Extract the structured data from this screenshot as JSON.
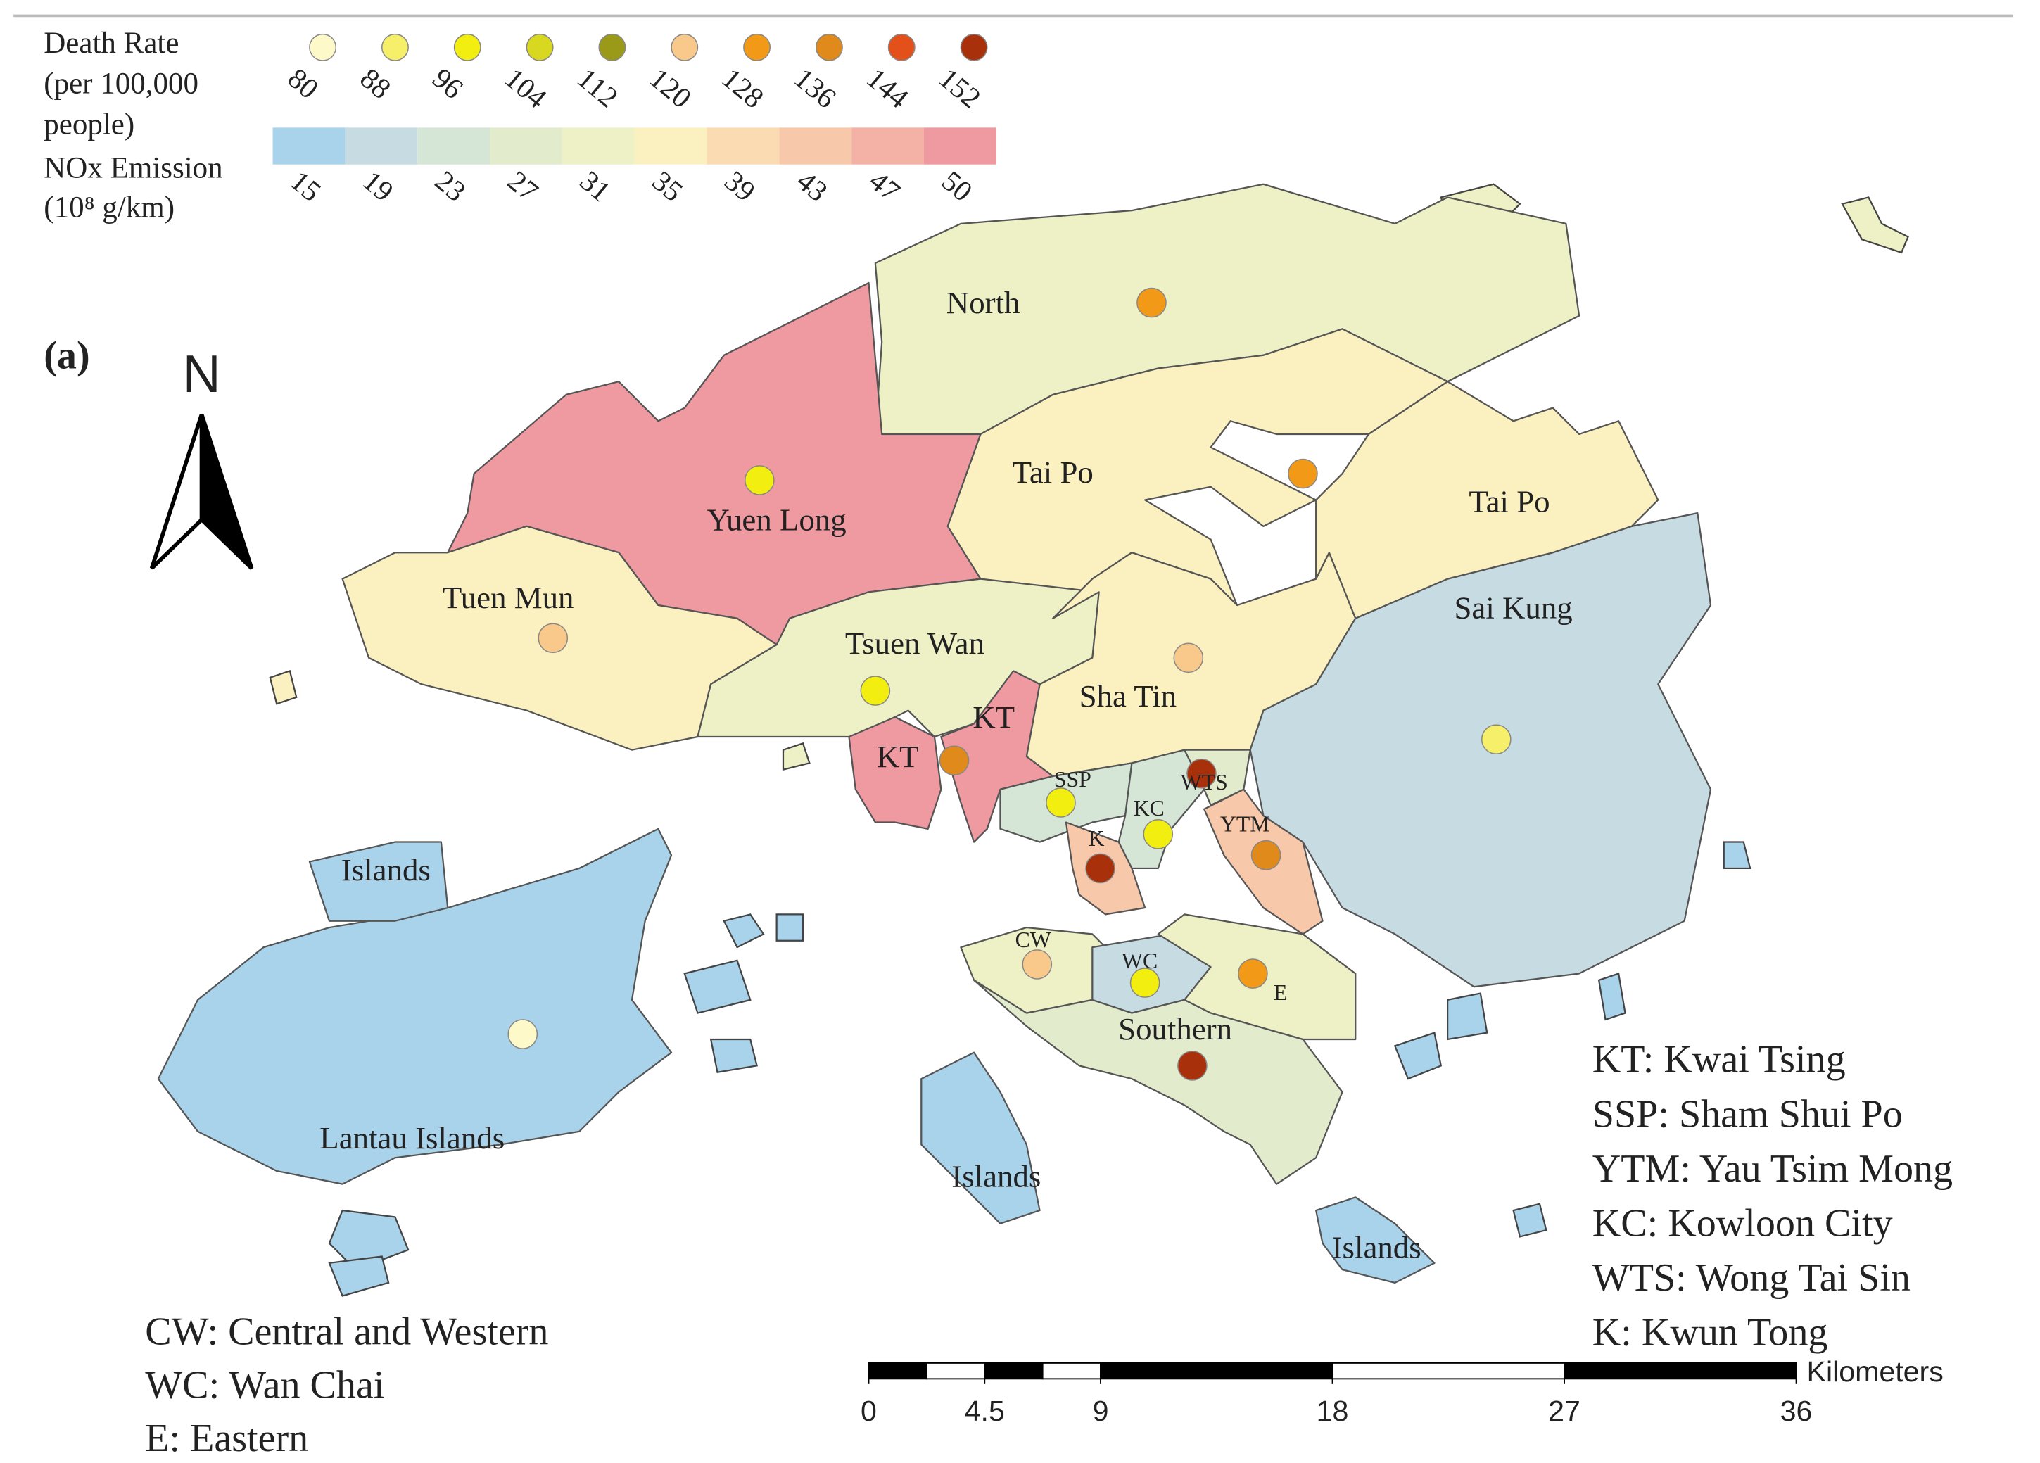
{
  "panel_label": "(a)",
  "north": "N",
  "death_rate_legend": {
    "title": [
      "Death Rate",
      "(per 100,000",
      "people)"
    ],
    "values": [
      80,
      88,
      96,
      104,
      112,
      120,
      128,
      136,
      144,
      152
    ],
    "colors": [
      "#fdf9c8",
      "#f6ef6a",
      "#f2ef10",
      "#d9d820",
      "#9a9a18",
      "#f8c98a",
      "#f29a18",
      "#df8a1a",
      "#e4501a",
      "#a8310c"
    ]
  },
  "nox_legend": {
    "title": [
      "NOx Emission",
      "(10⁸ g/km)"
    ],
    "values": [
      15,
      19,
      23,
      27,
      31,
      35,
      39,
      43,
      47,
      50
    ],
    "colors": [
      "#a9d3ea",
      "#c7dbe2",
      "#d5e5d6",
      "#e2ebcb",
      "#eef1c5",
      "#fbf0c0",
      "#fbdcb2",
      "#f8c8ab",
      "#f4b2a6",
      "#ef99a1"
    ]
  },
  "regions": [
    {
      "label": "North",
      "nox": 31,
      "death_rate": 128
    },
    {
      "label": "Tai Po",
      "nox": 35,
      "death_rate": 128
    },
    {
      "label": "Yuen Long",
      "nox": 50,
      "death_rate": 96
    },
    {
      "label": "Tuen Mun",
      "nox": 35,
      "death_rate": 120
    },
    {
      "label": "Tsuen Wan",
      "nox": 31,
      "death_rate": 96
    },
    {
      "label": "Sha Tin",
      "nox": 35,
      "death_rate": 120
    },
    {
      "label": "Sai Kung",
      "nox": 19,
      "death_rate": 88
    },
    {
      "label": "KT",
      "nox": 50
    },
    {
      "label": "KT",
      "nox": 50,
      "death_rate": 136
    },
    {
      "label": "SSP",
      "nox": 23,
      "death_rate": 96
    },
    {
      "label": "KC",
      "nox": 23,
      "death_rate": 96
    },
    {
      "label": "WTS",
      "nox": 27,
      "death_rate": 152
    },
    {
      "label": "YTM",
      "nox": 43,
      "death_rate": 136
    },
    {
      "label": "K",
      "nox": 43,
      "death_rate": 152
    },
    {
      "label": "Lantau Islands",
      "nox": 15,
      "death_rate": 80
    },
    {
      "label": "Islands",
      "nox": 15
    },
    {
      "label": "CW",
      "nox": 31,
      "death_rate": 120
    },
    {
      "label": "WC",
      "nox": 19,
      "death_rate": 96
    },
    {
      "label": "E",
      "nox": 31,
      "death_rate": 128
    },
    {
      "label": "Southern",
      "nox": 27,
      "death_rate": 152
    },
    {
      "label": "Tai Po",
      "nox": 35
    },
    {
      "label": "Islands",
      "nox": 15
    },
    {
      "label": "Islands",
      "nox": 15
    }
  ],
  "abbreviations_right": [
    "KT: Kwai Tsing",
    "SSP: Sham Shui Po",
    "YTM: Yau Tsim Mong",
    "KC: Kowloon City",
    "WTS: Wong Tai Sin",
    "K: Kwun Tong"
  ],
  "abbreviations_left": [
    "CW: Central and Western",
    "WC: Wan Chai",
    "E: Eastern"
  ],
  "scale_bar": {
    "ticks": [
      0,
      4.5,
      9,
      18,
      27,
      36
    ],
    "unit": "Kilometers"
  }
}
